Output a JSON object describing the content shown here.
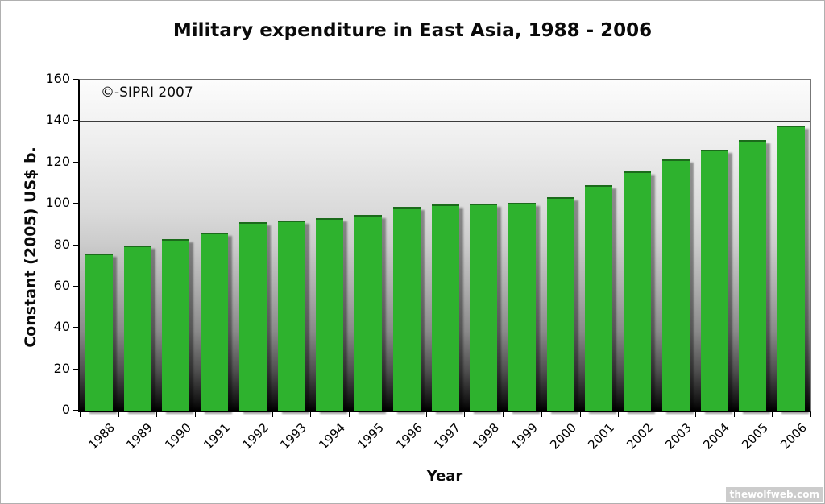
{
  "page": {
    "watermark": "thewolfweb.com"
  },
  "chart_data": {
    "type": "bar",
    "title": "Military expenditure in East Asia, 1988 - 2006",
    "annotation": "©-SIPRI 2007",
    "xlabel": "Year",
    "ylabel": "Constant (2005) US$ b.",
    "categories": [
      "1988",
      "1989",
      "1990",
      "1991",
      "1992",
      "1993",
      "1994",
      "1995",
      "1996",
      "1997",
      "1998",
      "1999",
      "2000",
      "2001",
      "2002",
      "2003",
      "2004",
      "2005",
      "2006"
    ],
    "values": [
      76,
      80,
      83,
      86,
      91,
      92,
      93,
      94.5,
      98.5,
      99.5,
      100,
      100.5,
      103,
      109,
      115.5,
      121.5,
      126,
      131,
      138
    ],
    "ylim": [
      0,
      160
    ],
    "y_ticks": [
      0,
      20,
      40,
      60,
      80,
      100,
      120,
      140,
      160
    ],
    "grid": "horizontal",
    "legend": "none",
    "bar_color": "#2eb22e",
    "plot_bg_top_color": "#fcfcfc",
    "plot_bg_bottom_color": "#000000"
  }
}
